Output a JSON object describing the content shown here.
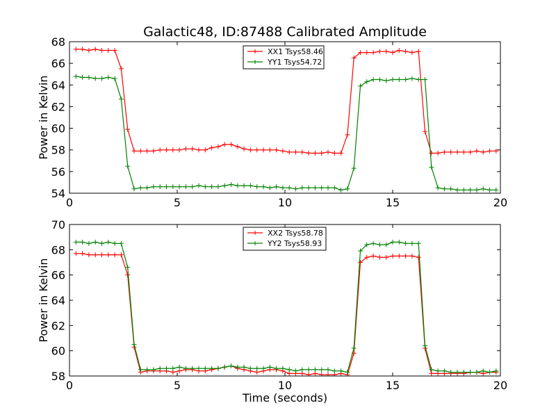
{
  "title": "Galactic48, ID:87488 Calibrated Amplitude",
  "chart_data": [
    {
      "type": "line",
      "title": "Galactic48, ID:87488 Calibrated Amplitude",
      "xlabel": "",
      "ylabel": "Power in Kelvin",
      "xlim": [
        0,
        20
      ],
      "ylim": [
        54,
        68
      ],
      "xticks": [
        0,
        5,
        10,
        15,
        20
      ],
      "yticks": [
        54,
        56,
        58,
        60,
        62,
        64,
        66,
        68
      ],
      "grid": false,
      "legend_position": "top-center",
      "x": [
        0.3,
        0.6,
        0.9,
        1.2,
        1.5,
        1.8,
        2.1,
        2.4,
        2.7,
        3.0,
        3.3,
        3.6,
        3.9,
        4.2,
        4.5,
        4.8,
        5.1,
        5.4,
        5.7,
        6.0,
        6.3,
        6.6,
        6.9,
        7.2,
        7.5,
        7.8,
        8.1,
        8.4,
        8.7,
        9.0,
        9.3,
        9.6,
        9.9,
        10.2,
        10.5,
        10.8,
        11.1,
        11.4,
        11.7,
        12.0,
        12.3,
        12.6,
        12.9,
        13.2,
        13.5,
        13.8,
        14.1,
        14.4,
        14.7,
        15.0,
        15.3,
        15.6,
        15.9,
        16.2,
        16.5,
        16.8,
        17.1,
        17.4,
        17.7,
        18.0,
        18.3,
        18.6,
        18.9,
        19.2,
        19.5,
        19.8
      ],
      "series": [
        {
          "name": "XX1 Tsys58.46",
          "color": "#ff0000",
          "values": [
            67.3,
            67.3,
            67.2,
            67.3,
            67.2,
            67.2,
            67.2,
            65.5,
            59.9,
            57.9,
            57.9,
            57.9,
            57.9,
            58.0,
            58.0,
            58.0,
            58.0,
            58.1,
            58.1,
            58.0,
            58.0,
            58.2,
            58.3,
            58.5,
            58.5,
            58.3,
            58.1,
            58.0,
            58.0,
            58.0,
            58.0,
            58.0,
            57.9,
            57.8,
            57.8,
            57.8,
            57.7,
            57.7,
            57.7,
            57.8,
            57.7,
            57.7,
            59.4,
            66.5,
            67.0,
            67.0,
            67.0,
            67.1,
            67.1,
            67.0,
            67.2,
            67.1,
            67.0,
            67.1,
            59.7,
            57.7,
            57.7,
            57.8,
            57.8,
            57.8,
            57.8,
            57.8,
            57.9,
            57.8,
            57.9,
            57.9
          ]
        },
        {
          "name": "YY1 Tsys54.72",
          "color": "#008000",
          "values": [
            64.8,
            64.7,
            64.7,
            64.6,
            64.6,
            64.7,
            64.6,
            62.7,
            56.5,
            54.4,
            54.5,
            54.5,
            54.6,
            54.6,
            54.6,
            54.6,
            54.6,
            54.6,
            54.6,
            54.7,
            54.6,
            54.6,
            54.6,
            54.7,
            54.8,
            54.7,
            54.7,
            54.7,
            54.6,
            54.6,
            54.5,
            54.6,
            54.5,
            54.5,
            54.4,
            54.5,
            54.5,
            54.5,
            54.5,
            54.5,
            54.5,
            54.3,
            54.4,
            56.3,
            63.9,
            64.3,
            64.5,
            64.5,
            64.4,
            64.5,
            64.5,
            64.5,
            64.6,
            64.5,
            64.5,
            56.4,
            54.5,
            54.4,
            54.4,
            54.3,
            54.3,
            54.3,
            54.3,
            54.4,
            54.3,
            54.3
          ]
        }
      ]
    },
    {
      "type": "line",
      "title": "",
      "xlabel": "Time (seconds)",
      "ylabel": "Power in Kelvin",
      "xlim": [
        0,
        20
      ],
      "ylim": [
        58,
        70
      ],
      "xticks": [
        0,
        5,
        10,
        15,
        20
      ],
      "yticks": [
        58,
        60,
        62,
        64,
        66,
        68,
        70
      ],
      "grid": false,
      "legend_position": "top-center",
      "x": [
        0.3,
        0.6,
        0.9,
        1.2,
        1.5,
        1.8,
        2.1,
        2.4,
        2.7,
        3.0,
        3.3,
        3.6,
        3.9,
        4.2,
        4.5,
        4.8,
        5.1,
        5.4,
        5.7,
        6.0,
        6.3,
        6.6,
        6.9,
        7.2,
        7.5,
        7.8,
        8.1,
        8.4,
        8.7,
        9.0,
        9.3,
        9.6,
        9.9,
        10.2,
        10.5,
        10.8,
        11.1,
        11.4,
        11.7,
        12.0,
        12.3,
        12.6,
        12.9,
        13.2,
        13.5,
        13.8,
        14.1,
        14.4,
        14.7,
        15.0,
        15.3,
        15.6,
        15.9,
        16.2,
        16.5,
        16.8,
        17.1,
        17.4,
        17.7,
        18.0,
        18.3,
        18.6,
        18.9,
        19.2,
        19.5,
        19.8
      ],
      "series": [
        {
          "name": "XX2 Tsys58.78",
          "color": "#ff0000",
          "values": [
            67.7,
            67.7,
            67.6,
            67.6,
            67.6,
            67.6,
            67.6,
            67.6,
            66.0,
            60.3,
            58.3,
            58.4,
            58.4,
            58.4,
            58.4,
            58.3,
            58.4,
            58.5,
            58.5,
            58.4,
            58.4,
            58.5,
            58.6,
            58.7,
            58.8,
            58.6,
            58.5,
            58.4,
            58.3,
            58.4,
            58.5,
            58.5,
            58.4,
            58.2,
            58.2,
            58.2,
            58.1,
            58.2,
            58.1,
            58.1,
            58.1,
            58.2,
            58.1,
            59.8,
            67.0,
            67.4,
            67.5,
            67.4,
            67.4,
            67.5,
            67.5,
            67.5,
            67.5,
            67.4,
            60.2,
            58.2,
            58.2,
            58.2,
            58.2,
            58.2,
            58.2,
            58.3,
            58.3,
            58.2,
            58.3,
            58.3
          ]
        },
        {
          "name": "YY2 Tsys58.93",
          "color": "#008000",
          "values": [
            68.6,
            68.6,
            68.5,
            68.6,
            68.5,
            68.6,
            68.5,
            68.5,
            66.6,
            60.5,
            58.5,
            58.5,
            58.5,
            58.6,
            58.6,
            58.6,
            58.7,
            58.6,
            58.6,
            58.6,
            58.6,
            58.6,
            58.6,
            58.7,
            58.8,
            58.7,
            58.7,
            58.6,
            58.6,
            58.6,
            58.7,
            58.6,
            58.6,
            58.5,
            58.4,
            58.5,
            58.5,
            58.5,
            58.5,
            58.5,
            58.4,
            58.4,
            58.3,
            60.2,
            67.9,
            68.4,
            68.5,
            68.4,
            68.4,
            68.6,
            68.6,
            68.5,
            68.5,
            68.5,
            60.4,
            58.5,
            58.4,
            58.4,
            58.3,
            58.3,
            58.3,
            58.3,
            58.3,
            58.4,
            58.3,
            58.4
          ]
        }
      ]
    }
  ]
}
